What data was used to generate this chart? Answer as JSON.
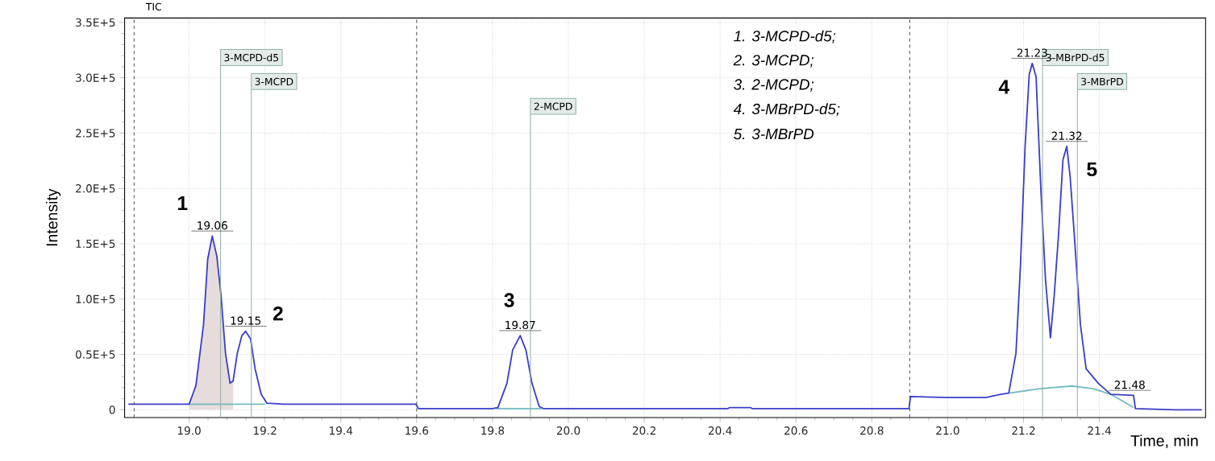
{
  "chart_data": {
    "type": "line",
    "title": "TIC",
    "xlabel": "Time, min",
    "ylabel": "Intensity",
    "xlim": [
      18.83,
      21.68
    ],
    "ylim": [
      -7000,
      354000
    ],
    "xticks": [
      {
        "value": 19.0,
        "label": "19.0"
      },
      19.2,
      19.4,
      19.6,
      19.8,
      {
        "value": 20.0,
        "label": "20.0"
      },
      20.2,
      20.4,
      20.6,
      20.8,
      {
        "value": 21.0,
        "label": "21.0"
      },
      21.2,
      21.4
    ],
    "yticks": [
      0,
      {
        "value": 50000,
        "label": "0.5E+5"
      },
      {
        "value": 100000,
        "label": "1.0E+5"
      },
      {
        "value": 150000,
        "label": "1.5E+5"
      },
      {
        "value": 200000,
        "label": "2.0E+5"
      },
      {
        "value": 250000,
        "label": "2.5E+5"
      },
      {
        "value": 300000,
        "label": "3.0E+5"
      },
      {
        "value": 350000,
        "label": "3.5E+5"
      }
    ],
    "grid": true,
    "series": [
      {
        "type": "area",
        "color": "#e6dcdc",
        "x": [
          19.0,
          19.018,
          19.038,
          19.049,
          19.061,
          19.073,
          19.084,
          19.096,
          19.108,
          19.116
        ],
        "values": [
          5000,
          22000,
          77000,
          136000,
          157000,
          139000,
          104000,
          51000,
          24000,
          26000
        ]
      },
      {
        "type": "line",
        "color": "#74bcc0",
        "x": [
          18.995,
          19.2,
          19.21,
          19.81,
          19.93,
          19.94,
          21.161,
          21.243,
          21.328,
          21.383,
          21.43,
          21.49
        ],
        "values": [
          5000,
          5000,
          null,
          1000,
          1000,
          null,
          15000,
          19000,
          21500,
          19000,
          14000,
          2000
        ]
      },
      {
        "color": "#3b3fc8",
        "x": [
          18.84,
          18.9,
          19.0,
          19.018,
          19.038,
          19.049,
          19.061,
          19.073,
          19.084,
          19.096,
          19.108,
          19.116,
          19.127,
          19.139,
          19.149,
          19.162,
          19.174,
          19.19,
          19.205,
          19.25,
          19.4,
          19.598,
          19.605,
          19.8,
          19.814,
          19.838,
          19.853,
          19.873,
          19.888,
          19.904,
          19.923,
          19.935,
          20.0,
          20.42,
          20.425,
          20.48,
          20.485,
          20.898,
          20.902,
          21.0,
          21.1,
          21.14,
          21.161,
          21.18,
          21.192,
          21.204,
          21.215,
          21.223,
          21.233,
          21.246,
          21.258,
          21.271,
          21.281,
          21.292,
          21.304,
          21.314,
          21.323,
          21.334,
          21.35,
          21.365,
          21.397,
          21.43,
          21.49,
          21.495,
          21.6,
          21.67
        ],
        "values": [
          5000,
          5000,
          5000,
          22000,
          77000,
          136000,
          157000,
          139000,
          104000,
          51000,
          24000,
          26000,
          51000,
          67000,
          71000,
          64000,
          37000,
          14000,
          6000,
          5000,
          5000,
          5000,
          1000,
          1000,
          2000,
          24000,
          54000,
          67000,
          54000,
          24000,
          3000,
          1000,
          1000,
          1000,
          2000,
          2000,
          1000,
          1000,
          12000,
          11000,
          11000,
          14000,
          15000,
          51000,
          131000,
          237000,
          303000,
          313000,
          301000,
          197000,
          117000,
          65000,
          104000,
          157000,
          226000,
          238000,
          210000,
          157000,
          77000,
          37000,
          24000,
          14000,
          13000,
          1000,
          0,
          0
        ]
      }
    ],
    "ref_lines": [
      {
        "axis": "x",
        "value": 18.855,
        "line_style": "dashed",
        "color": "#404040"
      },
      {
        "axis": "x",
        "value": 19.6,
        "line_style": "dashed",
        "color": "#404040"
      },
      {
        "axis": "x",
        "value": 20.9,
        "line_style": "dashed",
        "color": "#404040"
      },
      {
        "axis": "x",
        "value": 19.083,
        "label": "3-MCPD-d5",
        "color": "#8fb3a8"
      },
      {
        "axis": "x",
        "value": 19.164,
        "label": "3-MCPD",
        "color": "#8fb3a8"
      },
      {
        "axis": "x",
        "value": 19.9,
        "label": "2-MCPD",
        "color": "#8fb3a8"
      },
      {
        "axis": "x",
        "value": 21.25,
        "label": "3-MBrPD-d5",
        "color": "#8fb3a8"
      },
      {
        "axis": "x",
        "value": 21.342,
        "label": "3-MBrPD",
        "color": "#8fb3a8"
      }
    ],
    "annotations": [
      {
        "text": "19.06",
        "x": 19.061,
        "y": 157000
      },
      {
        "text": "19.15",
        "x": 19.149,
        "y": 71000
      },
      {
        "text": "19.87",
        "x": 19.873,
        "y": 67000
      },
      {
        "text": "21.23",
        "x": 21.223,
        "y": 313000
      },
      {
        "text": "21.32",
        "x": 21.314,
        "y": 238000
      },
      {
        "text": "21.48",
        "x": 21.48,
        "y": 13000
      },
      {
        "text": "1",
        "x": 19.061,
        "y": 157000
      },
      {
        "text": "2",
        "x": 19.149,
        "y": 71000
      },
      {
        "text": "3",
        "x": 19.873,
        "y": 67000
      },
      {
        "text": "4",
        "x": 21.223,
        "y": 313000
      },
      {
        "text": "5",
        "x": 21.314,
        "y": 238000
      },
      "1. 3-MCPD-d5;",
      "2. 3-MCPD;",
      "3. 2-MCPD;",
      "4. 3-MBrPD-d5;",
      "5. 3-MBrPD"
    ]
  }
}
